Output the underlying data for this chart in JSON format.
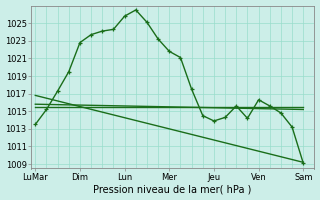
{
  "background_color": "#cceee8",
  "grid_color": "#99ddcc",
  "line_color": "#1a6e1a",
  "x_day_labels": [
    "LuMar",
    "Dim",
    "Lun",
    "Mer",
    "Jeu",
    "Ven",
    "Sam"
  ],
  "x_day_positions": [
    0,
    2,
    4,
    6,
    8,
    10,
    12
  ],
  "xlabel": "Pression niveau de la mer( hPa )",
  "ylim": [
    1008.5,
    1027.0
  ],
  "xlim": [
    -0.2,
    12.5
  ],
  "yticks": [
    1009,
    1011,
    1013,
    1015,
    1017,
    1019,
    1021,
    1023,
    1025
  ],
  "line1_x": [
    0,
    0.5,
    1.0,
    1.5,
    2.0,
    2.5,
    3.0,
    3.5,
    4.0,
    4.5,
    5.0,
    5.5,
    6.0,
    6.5,
    7.0,
    7.5,
    8.0,
    8.5,
    9.0,
    9.5,
    10.0,
    10.5,
    11.0,
    11.5,
    12.0
  ],
  "line1_y": [
    1013.5,
    1015.2,
    1017.3,
    1019.5,
    1022.8,
    1023.7,
    1024.1,
    1024.3,
    1025.8,
    1026.5,
    1025.1,
    1023.2,
    1021.8,
    1021.1,
    1017.5,
    1014.5,
    1013.9,
    1014.3,
    1015.6,
    1014.2,
    1016.3,
    1015.6,
    1014.8,
    1013.2,
    1009.1
  ],
  "line2_x": [
    0,
    12
  ],
  "line2_y": [
    1015.5,
    1015.5
  ],
  "line3_x": [
    0,
    12
  ],
  "line3_y": [
    1016.8,
    1009.2
  ],
  "line4_x": [
    0,
    12
  ],
  "line4_y": [
    1015.8,
    1015.2
  ],
  "grid_x_step": 0.5,
  "grid_x_major_step": 2,
  "figsize": [
    3.2,
    2.0
  ],
  "dpi": 100
}
